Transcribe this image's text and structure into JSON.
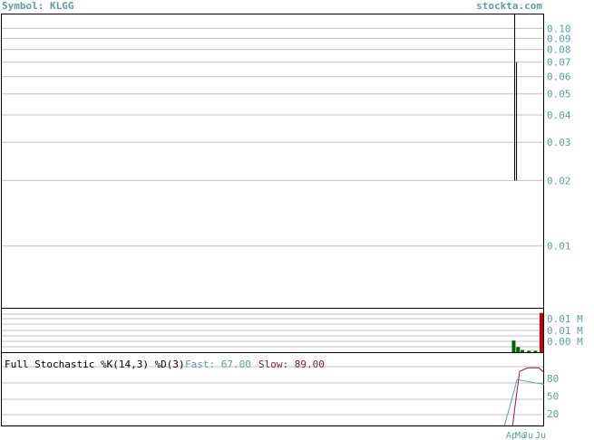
{
  "header": {
    "symbol_label": "Symbol: KLGG",
    "site": "stockta.com"
  },
  "colors": {
    "accent": "#5f9f9f",
    "grid": "#c0c0c0",
    "price_line": "#000000",
    "volume_up": "#006400",
    "volume_down": "#cc0000",
    "fast_k": "#5f9f9f",
    "slow_d": "#8b1a4a"
  },
  "stochastic": {
    "title": "Full Stochastic %K(14,3) %D(3)",
    "fast_label": "Fast:",
    "fast_value": "67.00",
    "slow_label": "Slow:",
    "slow_value": "89.00"
  },
  "chart_data": [
    {
      "type": "line",
      "scale": "log",
      "y_ticks": [
        {
          "value": 0.1,
          "label": "0.10"
        },
        {
          "value": 0.09,
          "label": "0.09"
        },
        {
          "value": 0.08,
          "label": "0.08"
        },
        {
          "value": 0.07,
          "label": "0.07"
        },
        {
          "value": 0.06,
          "label": "0.06"
        },
        {
          "value": 0.05,
          "label": "0.05"
        },
        {
          "value": 0.04,
          "label": "0.04"
        },
        {
          "value": 0.03,
          "label": "0.03"
        },
        {
          "value": 0.02,
          "label": "0.02"
        },
        {
          "value": 0.01,
          "label": "0.01"
        }
      ],
      "y_range": [
        0.0052,
        0.117
      ],
      "segments": [
        {
          "x": 0.9458,
          "y_from": 0.117,
          "y_to": 0.02
        },
        {
          "x": 0.9492,
          "y_from": 0.07,
          "y_to": 0.02
        }
      ],
      "grid": true
    },
    {
      "type": "bar",
      "y_ticks": [
        "0.01 M",
        "0.01 M",
        "0.00 M"
      ],
      "bars": [
        {
          "x": 0.944,
          "value": 0.8,
          "color": "#006400"
        },
        {
          "x": 0.952,
          "value": 0.35,
          "color": "#006400"
        },
        {
          "x": 0.96,
          "value": 0.15,
          "color": "#006400"
        },
        {
          "x": 0.972,
          "value": 0.1,
          "color": "#006400"
        },
        {
          "x": 0.984,
          "value": 0.1,
          "color": "#006400"
        },
        {
          "x": 0.995,
          "value": 2.7,
          "color": "#cc0000"
        }
      ],
      "max": 2.8
    },
    {
      "type": "line",
      "ylim": [
        0,
        100
      ],
      "y_ticks": [
        {
          "value": 80,
          "label": "80"
        },
        {
          "value": 50,
          "label": "50"
        },
        {
          "value": 20,
          "label": "20"
        }
      ],
      "x_labels": [
        "Ap",
        "Ma",
        "Ju",
        "Ju"
      ],
      "series": [
        {
          "points": [
            [
              0.927,
              0
            ],
            [
              0.945,
              60
            ],
            [
              0.95,
              78
            ],
            [
              1.0,
              70
            ]
          ]
        },
        {
          "points": [
            [
              0.942,
              0
            ],
            [
              0.948,
              45
            ],
            [
              0.955,
              92
            ],
            [
              0.97,
              98
            ],
            [
              0.99,
              98
            ],
            [
              1.0,
              90
            ]
          ]
        }
      ]
    }
  ]
}
